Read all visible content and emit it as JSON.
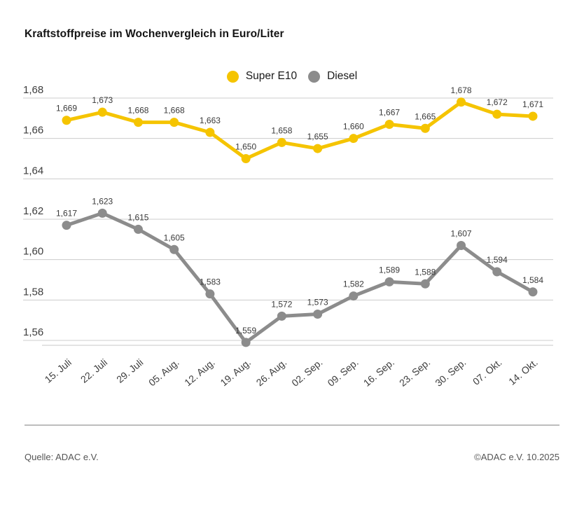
{
  "title": "Kraftstoffpreise im Wochenvergleich in Euro/Liter",
  "legend": {
    "items": [
      {
        "label": "Super E10",
        "color": "#F5C400"
      },
      {
        "label": "Diesel",
        "color": "#8C8C8C"
      }
    ]
  },
  "chart_data": {
    "type": "line",
    "title": "Kraftstoffpreise im Wochenvergleich in Euro/Liter",
    "categories": [
      "15. Juli",
      "22. Juli",
      "29. Juli",
      "05. Aug.",
      "12. Aug.",
      "19. Aug.",
      "26. Aug.",
      "02. Sep.",
      "09. Sep.",
      "16. Sep.",
      "23. Sep.",
      "30. Sep.",
      "07. Okt.",
      "14. Okt."
    ],
    "series": [
      {
        "name": "Super E10",
        "color": "#F5C400",
        "values": [
          1.669,
          1.673,
          1.668,
          1.668,
          1.663,
          1.65,
          1.658,
          1.655,
          1.66,
          1.667,
          1.665,
          1.678,
          1.672,
          1.671
        ]
      },
      {
        "name": "Diesel",
        "color": "#8C8C8C",
        "values": [
          1.617,
          1.623,
          1.615,
          1.605,
          1.583,
          1.559,
          1.572,
          1.573,
          1.582,
          1.589,
          1.588,
          1.607,
          1.594,
          1.584
        ]
      }
    ],
    "xlabel": "",
    "ylabel": "Euro/Liter",
    "ylim": [
      1.56,
      1.68
    ],
    "ytick_step": 0.02,
    "ytick_labels": [
      "1,68",
      "1,66",
      "1,64",
      "1,62",
      "1,60",
      "1,58",
      "1,56"
    ],
    "decimal_separator": ",",
    "grid": true,
    "legend_position": "top-center",
    "value_labels": true
  },
  "footer": {
    "source": "Quelle: ADAC e.V.",
    "copyright": "©ADAC e.V. 10.2025"
  }
}
